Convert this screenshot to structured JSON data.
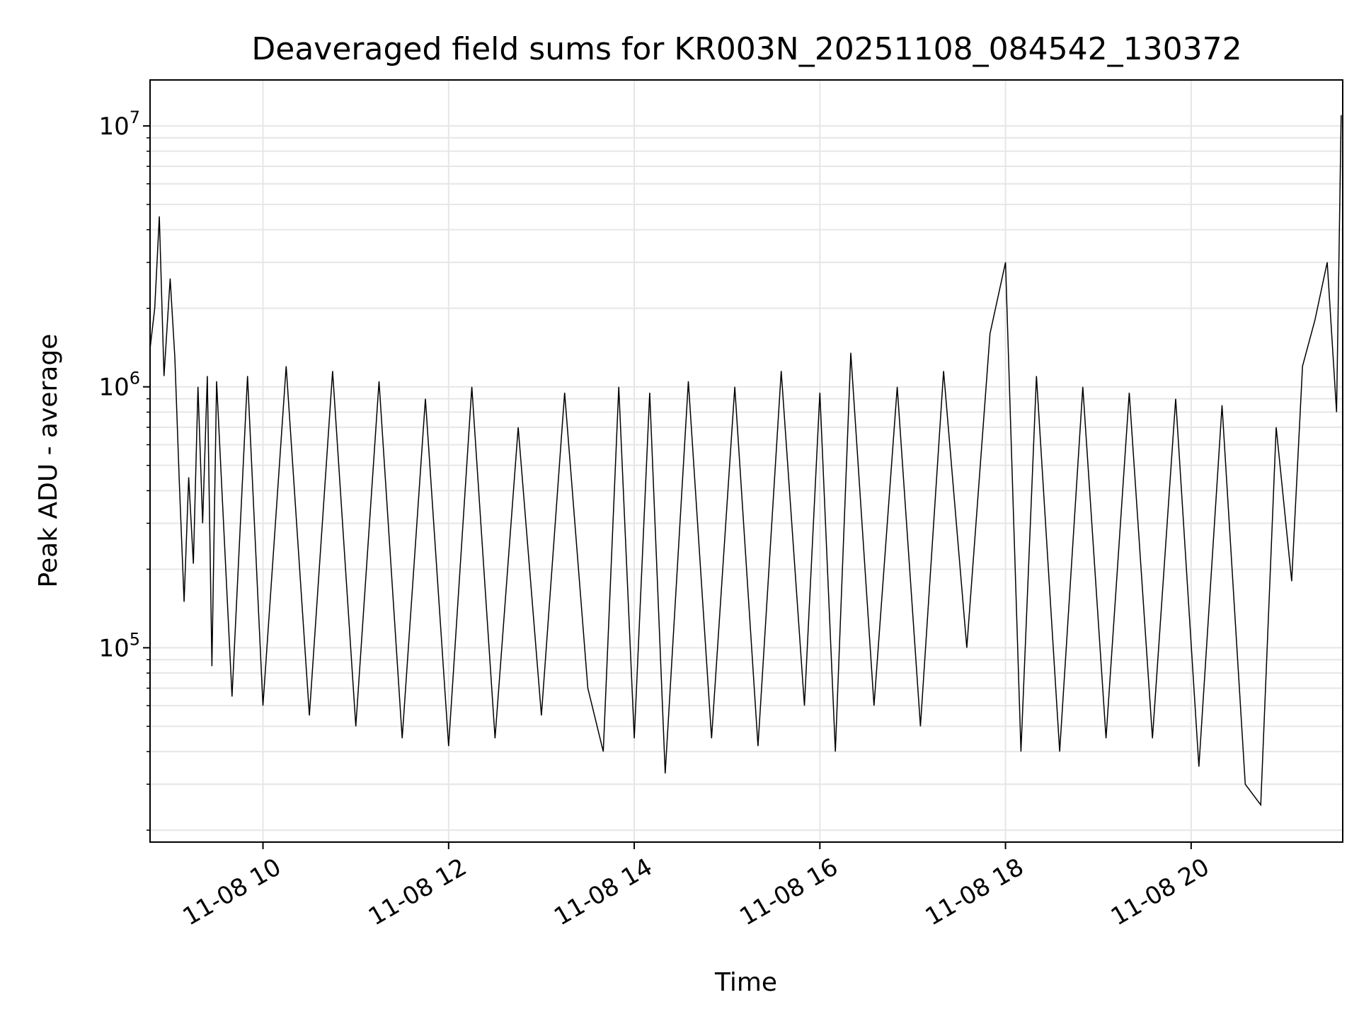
{
  "chart_data": {
    "type": "line",
    "title": "Deaveraged field sums for KR003N_20251108_084542_130372",
    "xlabel": "Time",
    "ylabel": "Peak ADU - average",
    "x_range": [
      "2025-11-08 08:47",
      "2025-11-08 21:38"
    ],
    "yscale": "log",
    "ylim": [
      18000,
      15000000
    ],
    "grid": true,
    "line_color": "#000000",
    "x_ticks": [
      {
        "value": "2025-11-08 10:00",
        "label": "11-08 10"
      },
      {
        "value": "2025-11-08 12:00",
        "label": "11-08 12"
      },
      {
        "value": "2025-11-08 14:00",
        "label": "11-08 14"
      },
      {
        "value": "2025-11-08 16:00",
        "label": "11-08 16"
      },
      {
        "value": "2025-11-08 18:00",
        "label": "11-08 18"
      },
      {
        "value": "2025-11-08 20:00",
        "label": "11-08 20"
      }
    ],
    "y_ticks": [
      {
        "value": 100000,
        "base": "10",
        "exp": "5"
      },
      {
        "value": 1000000,
        "base": "10",
        "exp": "6"
      },
      {
        "value": 10000000,
        "base": "10",
        "exp": "7"
      }
    ],
    "series": [
      {
        "points": [
          [
            "2025-11-08 08:47",
            1400000
          ],
          [
            "2025-11-08 08:50",
            2000000
          ],
          [
            "2025-11-08 08:53",
            4500000
          ],
          [
            "2025-11-08 08:56",
            1100000
          ],
          [
            "2025-11-08 09:00",
            2600000
          ],
          [
            "2025-11-08 09:03",
            1300000
          ],
          [
            "2025-11-08 09:06",
            420000
          ],
          [
            "2025-11-08 09:09",
            150000
          ],
          [
            "2025-11-08 09:12",
            450000
          ],
          [
            "2025-11-08 09:15",
            210000
          ],
          [
            "2025-11-08 09:18",
            1000000
          ],
          [
            "2025-11-08 09:21",
            300000
          ],
          [
            "2025-11-08 09:24",
            1100000
          ],
          [
            "2025-11-08 09:27",
            85000
          ],
          [
            "2025-11-08 09:30",
            1050000
          ],
          [
            "2025-11-08 09:40",
            65000
          ],
          [
            "2025-11-08 09:50",
            1100000
          ],
          [
            "2025-11-08 10:00",
            60000
          ],
          [
            "2025-11-08 10:15",
            1200000
          ],
          [
            "2025-11-08 10:30",
            55000
          ],
          [
            "2025-11-08 10:45",
            1150000
          ],
          [
            "2025-11-08 11:00",
            50000
          ],
          [
            "2025-11-08 11:15",
            1050000
          ],
          [
            "2025-11-08 11:30",
            45000
          ],
          [
            "2025-11-08 11:45",
            900000
          ],
          [
            "2025-11-08 12:00",
            42000
          ],
          [
            "2025-11-08 12:15",
            1000000
          ],
          [
            "2025-11-08 12:30",
            45000
          ],
          [
            "2025-11-08 12:45",
            700000
          ],
          [
            "2025-11-08 13:00",
            55000
          ],
          [
            "2025-11-08 13:15",
            950000
          ],
          [
            "2025-11-08 13:30",
            70000
          ],
          [
            "2025-11-08 13:40",
            40000
          ],
          [
            "2025-11-08 13:50",
            1000000
          ],
          [
            "2025-11-08 14:00",
            45000
          ],
          [
            "2025-11-08 14:10",
            950000
          ],
          [
            "2025-11-08 14:20",
            33000
          ],
          [
            "2025-11-08 14:35",
            1050000
          ],
          [
            "2025-11-08 14:50",
            45000
          ],
          [
            "2025-11-08 15:05",
            1000000
          ],
          [
            "2025-11-08 15:20",
            42000
          ],
          [
            "2025-11-08 15:35",
            1150000
          ],
          [
            "2025-11-08 15:50",
            60000
          ],
          [
            "2025-11-08 16:00",
            950000
          ],
          [
            "2025-11-08 16:10",
            40000
          ],
          [
            "2025-11-08 16:20",
            1350000
          ],
          [
            "2025-11-08 16:35",
            60000
          ],
          [
            "2025-11-08 16:50",
            1000000
          ],
          [
            "2025-11-08 17:05",
            50000
          ],
          [
            "2025-11-08 17:20",
            1150000
          ],
          [
            "2025-11-08 17:35",
            100000
          ],
          [
            "2025-11-08 17:50",
            1600000
          ],
          [
            "2025-11-08 18:00",
            3000000
          ],
          [
            "2025-11-08 18:10",
            40000
          ],
          [
            "2025-11-08 18:20",
            1100000
          ],
          [
            "2025-11-08 18:35",
            40000
          ],
          [
            "2025-11-08 18:50",
            1000000
          ],
          [
            "2025-11-08 19:05",
            45000
          ],
          [
            "2025-11-08 19:20",
            950000
          ],
          [
            "2025-11-08 19:35",
            45000
          ],
          [
            "2025-11-08 19:50",
            900000
          ],
          [
            "2025-11-08 20:05",
            35000
          ],
          [
            "2025-11-08 20:20",
            850000
          ],
          [
            "2025-11-08 20:35",
            30000
          ],
          [
            "2025-11-08 20:45",
            25000
          ],
          [
            "2025-11-08 20:55",
            700000
          ],
          [
            "2025-11-08 21:05",
            180000
          ],
          [
            "2025-11-08 21:12",
            1200000
          ],
          [
            "2025-11-08 21:20",
            1800000
          ],
          [
            "2025-11-08 21:28",
            3000000
          ],
          [
            "2025-11-08 21:34",
            800000
          ],
          [
            "2025-11-08 21:37",
            11000000
          ]
        ]
      }
    ]
  }
}
